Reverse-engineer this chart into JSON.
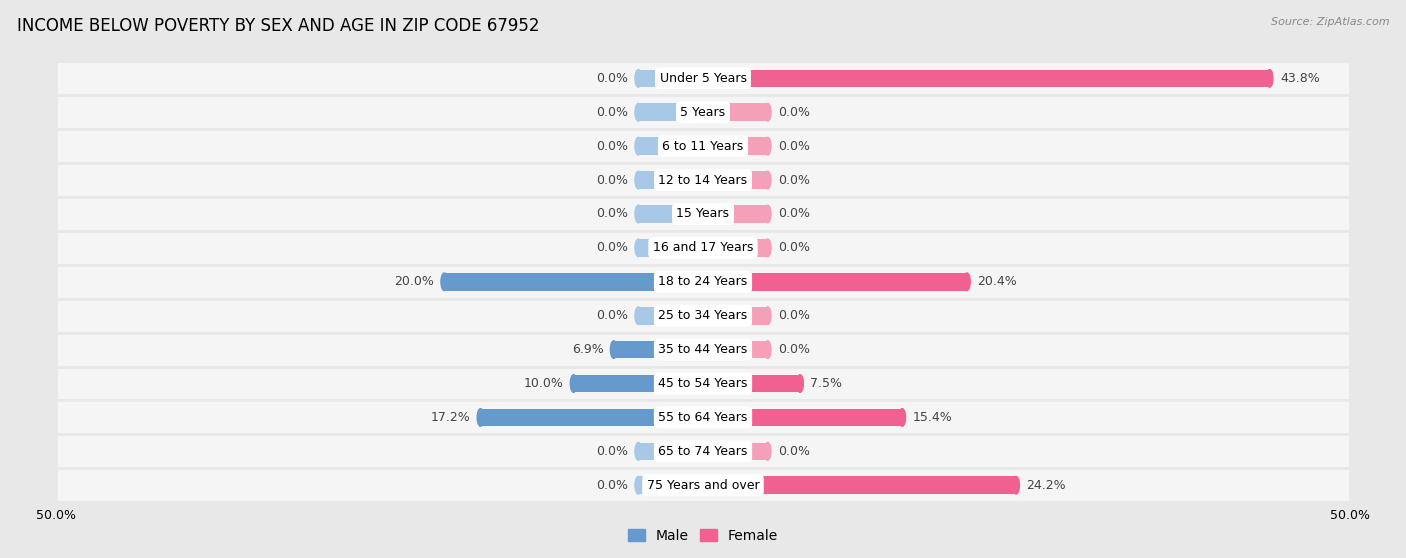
{
  "title": "INCOME BELOW POVERTY BY SEX AND AGE IN ZIP CODE 67952",
  "source": "Source: ZipAtlas.com",
  "categories": [
    "Under 5 Years",
    "5 Years",
    "6 to 11 Years",
    "12 to 14 Years",
    "15 Years",
    "16 and 17 Years",
    "18 to 24 Years",
    "25 to 34 Years",
    "35 to 44 Years",
    "45 to 54 Years",
    "55 to 64 Years",
    "65 to 74 Years",
    "75 Years and over"
  ],
  "male_values": [
    0.0,
    0.0,
    0.0,
    0.0,
    0.0,
    0.0,
    20.0,
    0.0,
    6.9,
    10.0,
    17.2,
    0.0,
    0.0
  ],
  "female_values": [
    43.8,
    0.0,
    0.0,
    0.0,
    0.0,
    0.0,
    20.4,
    0.0,
    0.0,
    7.5,
    15.4,
    0.0,
    24.2
  ],
  "male_color": "#a8c8e8",
  "female_color": "#f4a0b8",
  "male_color_active": "#6699cc",
  "female_color_active": "#f06090",
  "axis_max": 50.0,
  "bg_color": "#e8e8e8",
  "row_bg_color": "#f5f5f5",
  "row_alt_color": "#e8e8e8",
  "title_fontsize": 12,
  "label_fontsize": 9,
  "source_fontsize": 8,
  "value_fontsize": 9
}
